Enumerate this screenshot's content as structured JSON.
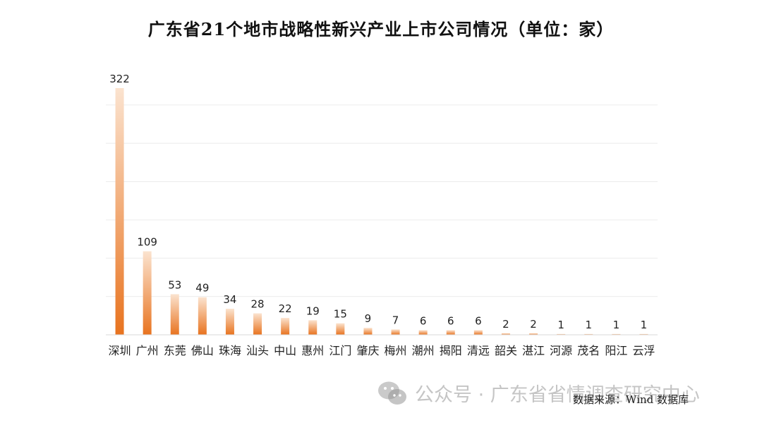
{
  "chart_data": {
    "type": "bar",
    "title": "广东省21个地市战略性新兴产业上市公司情况（单位：家）",
    "categories": [
      "深圳",
      "广州",
      "东莞",
      "佛山",
      "珠海",
      "汕头",
      "中山",
      "惠州",
      "江门",
      "肇庆",
      "梅州",
      "潮州",
      "揭阳",
      "清远",
      "韶关",
      "湛江",
      "河源",
      "茂名",
      "阳江",
      "云浮"
    ],
    "values": [
      322,
      109,
      53,
      49,
      34,
      28,
      22,
      19,
      15,
      9,
      7,
      6,
      6,
      6,
      2,
      2,
      1,
      1,
      1,
      1
    ],
    "ylim": [
      0,
      330
    ],
    "grid": true,
    "data_labels": true,
    "bar_gradient": {
      "top": "#fbe3cf",
      "bottom": "#e8731f"
    }
  },
  "source": "数据来源：Wind 数据库",
  "watermark": {
    "text": "公众号 · 广东省省情调查研究中心",
    "icon": "wechat-icon"
  }
}
